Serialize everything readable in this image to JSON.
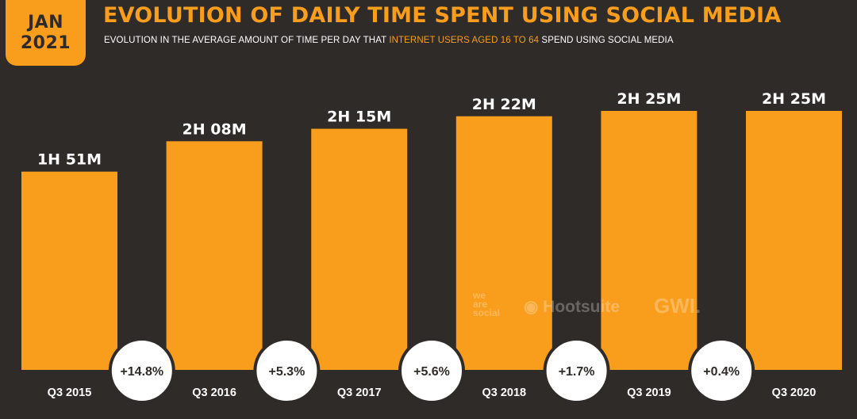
{
  "badge": {
    "month": "JAN",
    "year": "2021"
  },
  "title": "EVOLUTION OF DAILY TIME SPENT USING SOCIAL MEDIA",
  "subtitle": {
    "before": "EVOLUTION IN THE AVERAGE AMOUNT OF TIME PER DAY THAT ",
    "highlight": "INTERNET USERS AGED 16 TO 64",
    "after": " SPEND USING SOCIAL MEDIA"
  },
  "watermarks": {
    "we_are_social": [
      "we",
      "are",
      "social"
    ],
    "hootsuite": "Hootsuite",
    "gwi": "GWI."
  },
  "colors": {
    "background": "#2f2b28",
    "accent": "#f99d1c",
    "text": "#ffffff"
  },
  "chart_data": {
    "type": "bar",
    "categories": [
      "Q3 2015",
      "Q3 2016",
      "Q3 2017",
      "Q3 2018",
      "Q3 2019",
      "Q3 2020"
    ],
    "values": [
      111,
      128,
      135,
      142,
      145,
      145
    ],
    "value_labels": [
      "1H 51M",
      "2H 08M",
      "2H 15M",
      "2H 22M",
      "2H 25M",
      "2H 25M"
    ],
    "unit": "minutes",
    "changes": [
      "+14.8%",
      "+5.3%",
      "+5.6%",
      "+1.7%",
      "+0.4%"
    ],
    "ylim": [
      0,
      145
    ],
    "grid": false,
    "legend": "none"
  }
}
